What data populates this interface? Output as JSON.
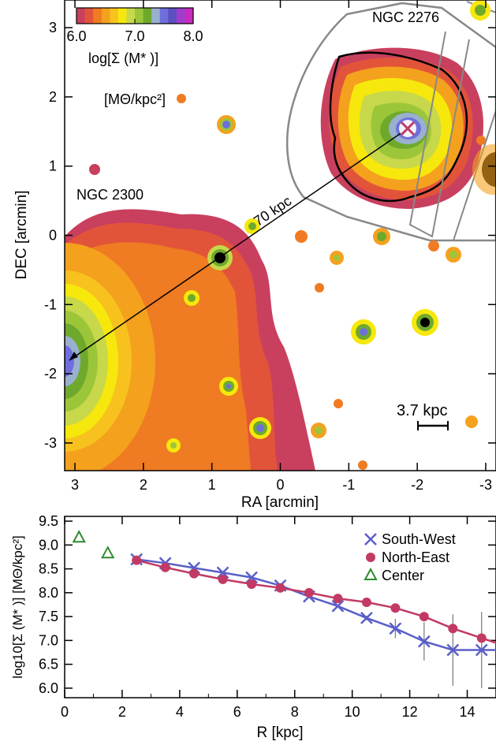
{
  "chart_data": [
    {
      "type": "heatmap",
      "xlabel": "RA [arcmin]",
      "ylabel": "DEC [arcmin]",
      "xlim": [
        3.15,
        -3.15
      ],
      "ylim": [
        -3.4,
        3.4
      ],
      "xticks": [
        "3",
        "2",
        "1",
        "0",
        "-1",
        "-2",
        "-3"
      ],
      "yticks": [
        "3",
        "2",
        "1",
        "0",
        "-1",
        "-2",
        "-3"
      ],
      "colorbar": {
        "ticks": [
          "6.0",
          "7.0",
          "8.0"
        ],
        "range": [
          6.0,
          8.0
        ],
        "title": "log[Σ (M* )]",
        "unit": "[MΘ/kpc²]",
        "colors": [
          "#c9405e",
          "#e2543a",
          "#ef7b22",
          "#f4a11e",
          "#f7c21d",
          "#f6e80c",
          "#c7d84a",
          "#9cc63a",
          "#6fa92c",
          "#9ab0cf",
          "#6e6fdc",
          "#5e4ec0",
          "#a03ccb",
          "#c72bc0"
        ]
      },
      "annotations": {
        "galaxy_a": "NGC 2276",
        "galaxy_b": "NGC 2300",
        "separation": "70 kpc",
        "scalebar": "3.7 kpc"
      }
    },
    {
      "type": "line",
      "xlabel": "R  [kpc]",
      "ylabel": "log10[Σ (M* )] [MΘ/kpc²]",
      "xlim": [
        0,
        15
      ],
      "ylim": [
        5.8,
        9.6
      ],
      "xticks": [
        0,
        2,
        4,
        6,
        8,
        10,
        12,
        14
      ],
      "yticks": [
        6.0,
        6.5,
        7.0,
        7.5,
        8.0,
        8.5,
        9.0,
        9.5
      ],
      "legend_position": "top-right",
      "series": [
        {
          "name": "South-West",
          "color": "#5a5fc8",
          "marker": "x",
          "x": [
            2.5,
            3.5,
            4.5,
            5.5,
            6.5,
            7.5,
            8.5,
            9.5,
            10.5,
            11.5,
            12.5,
            13.5,
            14.5,
            15.0
          ],
          "y": [
            8.7,
            8.62,
            8.52,
            8.42,
            8.32,
            8.15,
            7.92,
            7.72,
            7.47,
            7.25,
            6.98,
            6.8,
            6.8,
            6.8
          ],
          "err": [
            0,
            0,
            0,
            0,
            0,
            0,
            0,
            0,
            0.05,
            0.2,
            0.4,
            0.75,
            0.8,
            0
          ]
        },
        {
          "name": "North-East",
          "color": "#c23a63",
          "marker": "circle",
          "x": [
            2.5,
            3.5,
            4.5,
            5.5,
            6.5,
            7.5,
            8.5,
            9.5,
            10.5,
            11.5,
            12.5,
            13.5,
            14.5,
            15.0
          ],
          "y": [
            8.68,
            8.53,
            8.4,
            8.28,
            8.18,
            8.1,
            8.0,
            7.88,
            7.8,
            7.68,
            7.5,
            7.25,
            7.05,
            6.95
          ],
          "err": [
            0,
            0,
            0,
            0,
            0,
            0,
            0,
            0,
            0,
            0,
            0,
            0,
            0,
            0
          ]
        },
        {
          "name": "Center",
          "color": "#2e8b2e",
          "marker": "triangle",
          "x": [
            0.5,
            1.5
          ],
          "y": [
            9.15,
            8.82
          ],
          "err": [
            0,
            0
          ]
        }
      ]
    }
  ]
}
